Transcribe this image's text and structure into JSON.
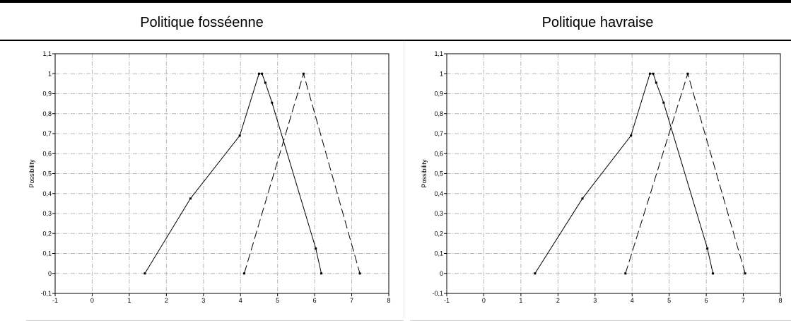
{
  "header": {
    "left_title": "Politique fosséenne",
    "right_title": "Politique havraise"
  },
  "chart_data": [
    {
      "type": "line",
      "title": "",
      "xlabel": "",
      "ylabel": "Possibility",
      "xlim": [
        -1,
        8
      ],
      "ylim": [
        -0.1,
        1.1
      ],
      "x_ticks": [
        -1,
        0,
        1,
        2,
        3,
        4,
        5,
        6,
        7,
        8
      ],
      "x_tick_labels": [
        "-1",
        "0",
        "1",
        "2",
        "3",
        "4",
        "5",
        "6",
        "7",
        "8"
      ],
      "y_ticks": [
        -0.1,
        0,
        0.1,
        0.2,
        0.3,
        0.4,
        0.5,
        0.6,
        0.7,
        0.8,
        0.9,
        1,
        1.1
      ],
      "y_tick_labels": [
        "-0,1",
        "0",
        "0,1",
        "0,2",
        "0,3",
        "0,4",
        "0,5",
        "0,6",
        "0,7",
        "0,8",
        "0,9",
        "1",
        "1,1"
      ],
      "grid": true,
      "series": [
        {
          "style": "solid",
          "color": "#000000",
          "x": [
            1.42,
            2.65,
            3.98,
            4.5,
            4.58,
            4.67,
            4.85,
            6.03,
            6.18
          ],
          "y": [
            0,
            0.375,
            0.69,
            1,
            1,
            0.955,
            0.855,
            0.125,
            0
          ]
        },
        {
          "style": "dashed",
          "color": "#000000",
          "x": [
            4.1,
            5.7,
            7.22
          ],
          "y": [
            0,
            1,
            0
          ]
        }
      ]
    },
    {
      "type": "line",
      "title": "",
      "xlabel": "",
      "ylabel": "Possibility",
      "xlim": [
        -1,
        8
      ],
      "ylim": [
        -0.1,
        1.1
      ],
      "x_ticks": [
        -1,
        0,
        1,
        2,
        3,
        4,
        5,
        6,
        7,
        8
      ],
      "x_tick_labels": [
        "-1",
        "0",
        "1",
        "2",
        "3",
        "4",
        "5",
        "6",
        "7",
        "8"
      ],
      "y_ticks": [
        -0.1,
        0,
        0.1,
        0.2,
        0.3,
        0.4,
        0.5,
        0.6,
        0.7,
        0.8,
        0.9,
        1,
        1.1
      ],
      "y_tick_labels": [
        "-0,1",
        "0",
        "0,1",
        "0,2",
        "0,3",
        "0,4",
        "0,5",
        "0,6",
        "0,7",
        "0,8",
        "0,9",
        "1",
        "1,1"
      ],
      "grid": true,
      "series": [
        {
          "style": "solid",
          "color": "#000000",
          "x": [
            1.38,
            2.66,
            3.97,
            4.48,
            4.57,
            4.65,
            4.85,
            6.03,
            6.18
          ],
          "y": [
            0,
            0.375,
            0.69,
            1,
            1,
            0.955,
            0.855,
            0.125,
            0
          ]
        },
        {
          "style": "dashed",
          "color": "#000000",
          "x": [
            3.82,
            5.5,
            7.05
          ],
          "y": [
            0,
            1,
            0
          ]
        }
      ]
    }
  ]
}
